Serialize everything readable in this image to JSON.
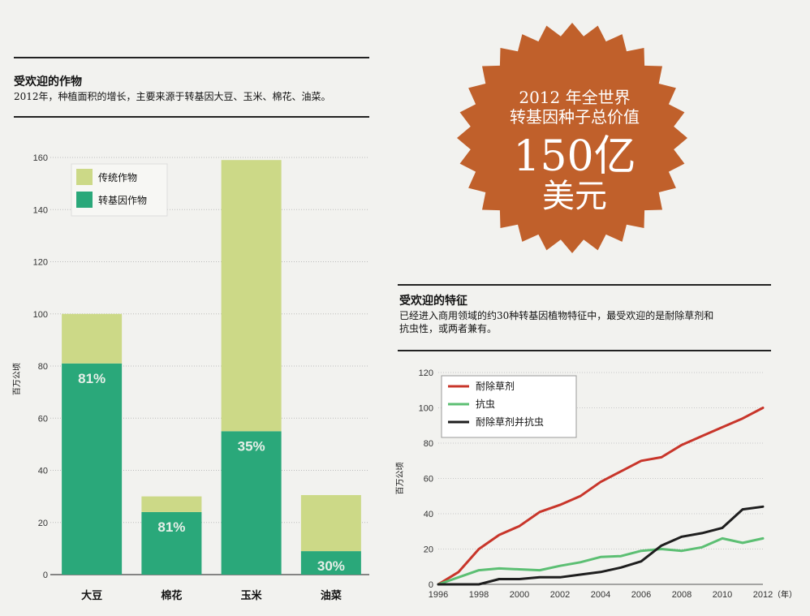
{
  "left_section": {
    "title": "受欢迎的作物",
    "subtitle": "2012年，种植面积的增长，主要来源于转基因大豆、玉米、棉花、油菜。"
  },
  "right_section": {
    "title": "受欢迎的特征",
    "subtitle_line1": "已经进入商用领域的约30种转基因植物特征中，最受欢迎的是耐除草剂和",
    "subtitle_line2": "抗虫性，或两者兼有。"
  },
  "badge": {
    "line1": "2012 年全世界",
    "line2": "转基因种子总价值",
    "value": "150亿",
    "unit": "美元",
    "color": "#c0602b"
  },
  "chart_data": [
    {
      "type": "bar",
      "stacked": true,
      "ylabel": "百万公顷",
      "ylim": [
        0,
        160
      ],
      "yticks": [
        0,
        20,
        40,
        60,
        80,
        100,
        120,
        140,
        160
      ],
      "grid": true,
      "legend_position": "top-left",
      "categories": [
        "大豆",
        "棉花",
        "玉米",
        "油菜"
      ],
      "series": [
        {
          "name": "转基因作物",
          "color": "#2aa87a",
          "values": [
            81,
            24,
            55,
            9
          ]
        },
        {
          "name": "传统作物",
          "color": "#ccd987",
          "values": [
            19,
            6,
            104,
            21.5
          ]
        }
      ],
      "legend_order": [
        1,
        0
      ],
      "bar_labels": [
        "81%",
        "81%",
        "35%",
        "30%"
      ]
    },
    {
      "type": "line",
      "ylabel": "百万公顷",
      "x_unit": "（年）",
      "xlim": [
        1996,
        2012
      ],
      "xticks": [
        1996,
        1998,
        2000,
        2002,
        2004,
        2006,
        2008,
        2010,
        2012
      ],
      "ylim": [
        0,
        120
      ],
      "yticks": [
        0,
        20,
        40,
        60,
        80,
        100,
        120
      ],
      "grid": true,
      "legend_position": "top-left",
      "x": [
        1996,
        1997,
        1998,
        1999,
        2000,
        2001,
        2002,
        2003,
        2004,
        2005,
        2006,
        2007,
        2008,
        2009,
        2010,
        2011,
        2012
      ],
      "series": [
        {
          "name": "耐除草剂",
          "color": "#c8352a",
          "values": [
            0,
            7,
            20,
            28,
            33,
            41,
            45,
            50,
            58,
            64,
            70,
            72,
            79,
            84,
            89,
            94,
            100
          ]
        },
        {
          "name": "抗虫",
          "color": "#5cbf73",
          "values": [
            0,
            4,
            8,
            9,
            8.5,
            8,
            10.5,
            12.5,
            15.5,
            16,
            19,
            20,
            19,
            21,
            26,
            23.5,
            26
          ]
        },
        {
          "name": "耐除草剂并抗虫",
          "color": "#1e1e1e",
          "values": [
            0,
            0,
            0,
            3,
            3,
            4,
            4,
            5.5,
            7,
            9.5,
            13,
            22,
            27,
            29,
            32,
            42.5,
            44
          ]
        }
      ]
    }
  ]
}
